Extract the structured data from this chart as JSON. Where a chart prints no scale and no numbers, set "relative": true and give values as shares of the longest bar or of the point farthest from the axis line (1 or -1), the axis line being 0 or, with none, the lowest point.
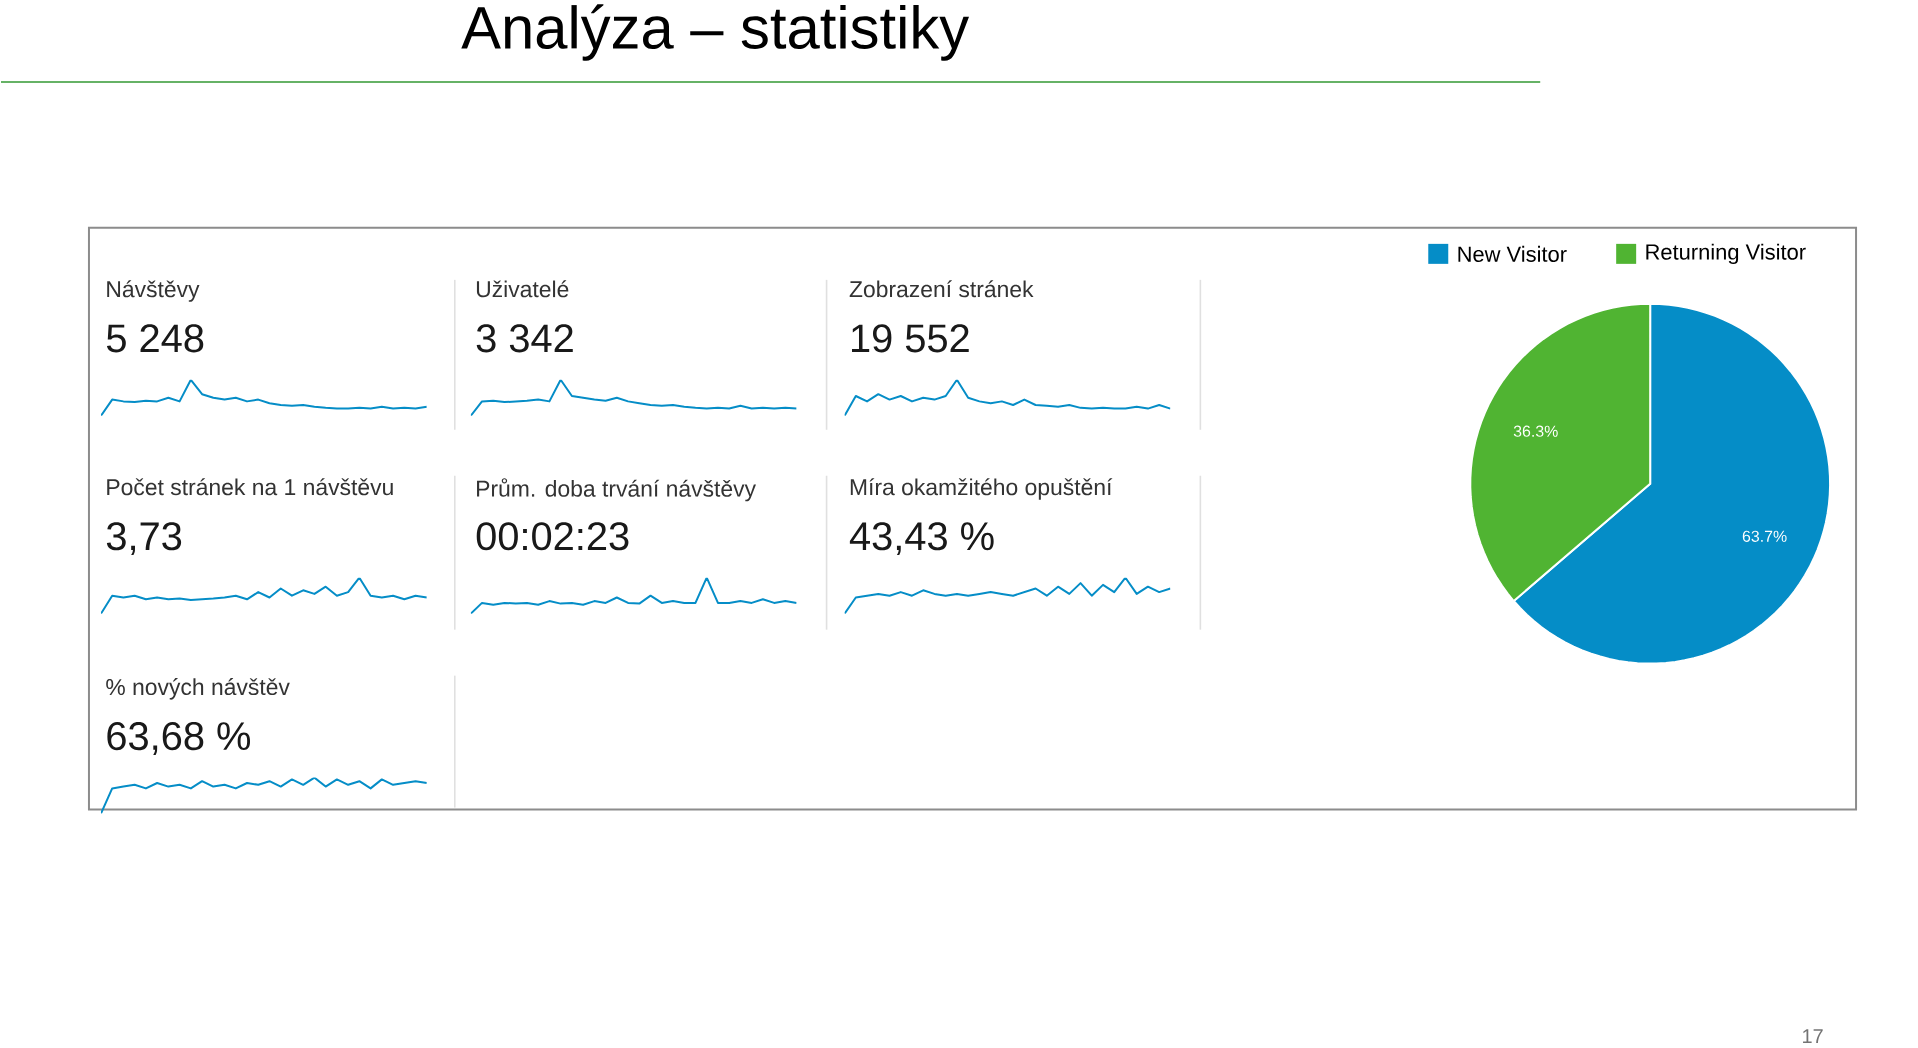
{
  "chart_data": [
    {
      "type": "other",
      "title": "Analýza – statistiky",
      "annotations": [
        "17"
      ]
    },
    {
      "type": "line",
      "title": "Návštěvy",
      "subtitle": "5 248",
      "relative": true,
      "color": "#058dc7",
      "categories": [
        null,
        null,
        null,
        null,
        null,
        null,
        null,
        null,
        null,
        null,
        null,
        null,
        null,
        null,
        null,
        null,
        null,
        null,
        null,
        null,
        null,
        null,
        null,
        null,
        null,
        null,
        null,
        null,
        null,
        null
      ],
      "values": [
        0,
        0.45,
        0.4,
        0.38,
        0.42,
        0.4,
        0.5,
        0.4,
        1,
        0.6,
        0.5,
        0.45,
        0.5,
        0.4,
        0.45,
        0.35,
        0.3,
        0.28,
        0.3,
        0.25,
        0.22,
        0.2,
        0.2,
        0.22,
        0.2,
        0.25,
        0.2,
        0.22,
        0.2,
        0.25
      ]
    },
    {
      "type": "line",
      "title": "Uživatelé",
      "subtitle": "3 342",
      "relative": true,
      "color": "#058dc7",
      "categories": [
        null,
        null,
        null,
        null,
        null,
        null,
        null,
        null,
        null,
        null,
        null,
        null,
        null,
        null,
        null,
        null,
        null,
        null,
        null,
        null,
        null,
        null,
        null,
        null,
        null,
        null,
        null,
        null,
        null,
        null
      ],
      "values": [
        0,
        0.4,
        0.42,
        0.38,
        0.4,
        0.42,
        0.45,
        0.4,
        1,
        0.55,
        0.5,
        0.45,
        0.42,
        0.5,
        0.4,
        0.35,
        0.3,
        0.28,
        0.3,
        0.25,
        0.22,
        0.2,
        0.22,
        0.2,
        0.28,
        0.2,
        0.22,
        0.2,
        0.22,
        0.2
      ]
    },
    {
      "type": "line",
      "title": "Zobrazení stránek",
      "subtitle": "19 552",
      "relative": true,
      "color": "#058dc7",
      "categories": [
        null,
        null,
        null,
        null,
        null,
        null,
        null,
        null,
        null,
        null,
        null,
        null,
        null,
        null,
        null,
        null,
        null,
        null,
        null,
        null,
        null,
        null,
        null,
        null,
        null,
        null,
        null,
        null,
        null,
        null
      ],
      "values": [
        0,
        0.55,
        0.4,
        0.6,
        0.45,
        0.55,
        0.4,
        0.5,
        0.45,
        0.55,
        1,
        0.5,
        0.4,
        0.35,
        0.4,
        0.3,
        0.45,
        0.3,
        0.28,
        0.25,
        0.3,
        0.22,
        0.2,
        0.22,
        0.2,
        0.2,
        0.25,
        0.2,
        0.3,
        0.2
      ]
    },
    {
      "type": "line",
      "title": "Počet stránek na 1 návštěvu",
      "subtitle": "3,73",
      "relative": true,
      "color": "#058dc7",
      "categories": [
        null,
        null,
        null,
        null,
        null,
        null,
        null,
        null,
        null,
        null,
        null,
        null,
        null,
        null,
        null,
        null,
        null,
        null,
        null,
        null,
        null,
        null,
        null,
        null,
        null,
        null,
        null,
        null,
        null,
        null
      ],
      "values": [
        0,
        0.5,
        0.45,
        0.5,
        0.4,
        0.45,
        0.4,
        0.42,
        0.38,
        0.4,
        0.42,
        0.45,
        0.5,
        0.4,
        0.6,
        0.45,
        0.7,
        0.5,
        0.65,
        0.55,
        0.75,
        0.5,
        0.6,
        1,
        0.5,
        0.45,
        0.5,
        0.4,
        0.5,
        0.45
      ]
    },
    {
      "type": "line",
      "title": "Prům. doba trvání návštěvy",
      "subtitle": "00:02:23",
      "relative": true,
      "color": "#058dc7",
      "categories": [
        null,
        null,
        null,
        null,
        null,
        null,
        null,
        null,
        null,
        null,
        null,
        null,
        null,
        null,
        null,
        null,
        null,
        null,
        null,
        null,
        null,
        null,
        null,
        null,
        null,
        null,
        null,
        null,
        null,
        null
      ],
      "values": [
        0,
        0.3,
        0.25,
        0.3,
        0.28,
        0.3,
        0.25,
        0.35,
        0.28,
        0.3,
        0.25,
        0.35,
        0.3,
        0.45,
        0.3,
        0.28,
        0.5,
        0.3,
        0.35,
        0.3,
        0.3,
        1,
        0.3,
        0.3,
        0.35,
        0.3,
        0.4,
        0.3,
        0.35,
        0.3
      ]
    },
    {
      "type": "line",
      "title": "Míra okamžitého opuštění",
      "subtitle": "43,43 %",
      "relative": true,
      "color": "#058dc7",
      "categories": [
        null,
        null,
        null,
        null,
        null,
        null,
        null,
        null,
        null,
        null,
        null,
        null,
        null,
        null,
        null,
        null,
        null,
        null,
        null,
        null,
        null,
        null,
        null,
        null,
        null,
        null,
        null,
        null,
        null,
        null
      ],
      "values": [
        0,
        0.45,
        0.5,
        0.55,
        0.5,
        0.6,
        0.5,
        0.65,
        0.55,
        0.5,
        0.55,
        0.5,
        0.55,
        0.6,
        0.55,
        0.5,
        0.6,
        0.7,
        0.5,
        0.75,
        0.55,
        0.85,
        0.5,
        0.8,
        0.6,
        1,
        0.55,
        0.75,
        0.6,
        0.7
      ]
    },
    {
      "type": "line",
      "title": "% nových návštěv",
      "subtitle": "63,68 %",
      "relative": true,
      "color": "#058dc7",
      "categories": [
        null,
        null,
        null,
        null,
        null,
        null,
        null,
        null,
        null,
        null,
        null,
        null,
        null,
        null,
        null,
        null,
        null,
        null,
        null,
        null,
        null,
        null,
        null,
        null,
        null,
        null,
        null,
        null,
        null,
        null
      ],
      "values": [
        0,
        0.7,
        0.75,
        0.8,
        0.7,
        0.85,
        0.75,
        0.8,
        0.7,
        0.9,
        0.75,
        0.8,
        0.7,
        0.85,
        0.8,
        0.9,
        0.75,
        0.95,
        0.8,
        1,
        0.75,
        0.95,
        0.8,
        0.9,
        0.7,
        0.95,
        0.8,
        0.85,
        0.9,
        0.85
      ]
    },
    {
      "type": "pie",
      "categories": [
        "New Visitor",
        "Returning Visitor"
      ],
      "values": [
        63.7,
        36.3
      ],
      "colors": [
        "#058dc7",
        "#50b432"
      ],
      "value_labels": [
        "63.7%",
        "36.3%"
      ],
      "legend": "top"
    }
  ]
}
